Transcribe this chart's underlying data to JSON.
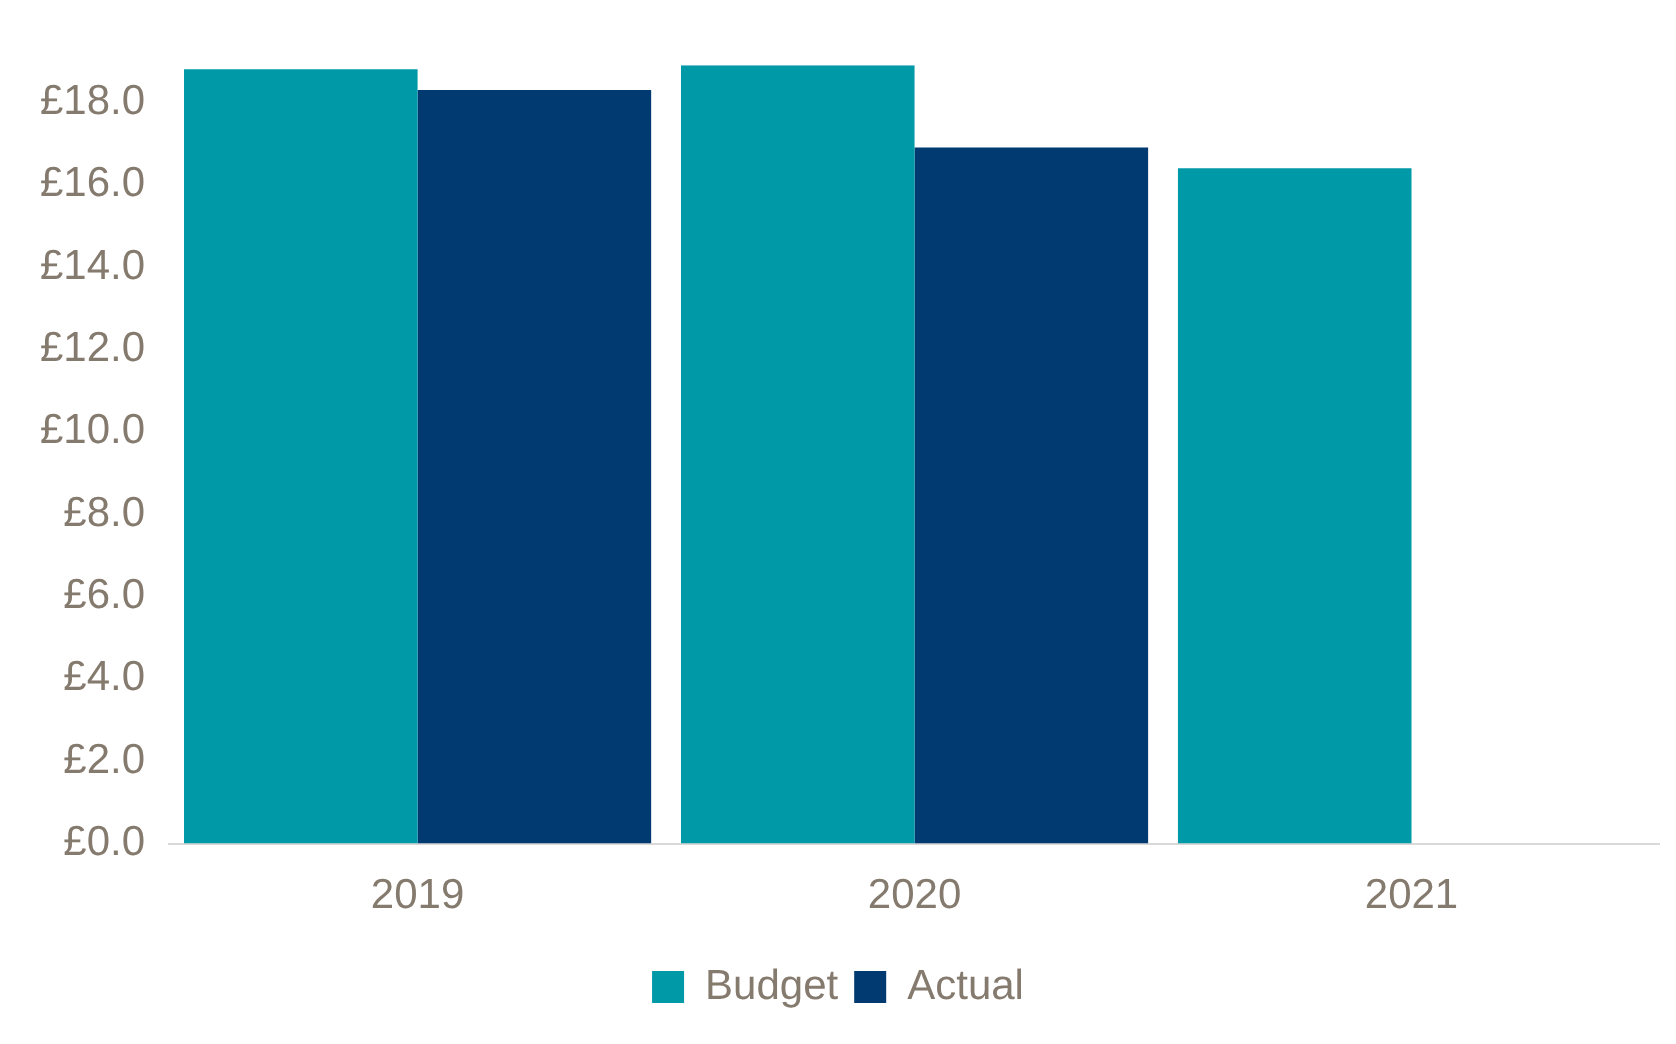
{
  "chart_data": {
    "type": "bar",
    "categories": [
      "2019",
      "2020",
      "2021"
    ],
    "series": [
      {
        "name": "Budget",
        "color": "#0099a8",
        "values": [
          18.8,
          18.9,
          16.4
        ]
      },
      {
        "name": "Actual",
        "color": "#003a70",
        "values": [
          18.3,
          16.9,
          null
        ]
      }
    ],
    "yticks": [
      {
        "value": 0,
        "label": "£0.0"
      },
      {
        "value": 2,
        "label": "£2.0"
      },
      {
        "value": 4,
        "label": "£4.0"
      },
      {
        "value": 6,
        "label": "£6.0"
      },
      {
        "value": 8,
        "label": "£8.0"
      },
      {
        "value": 10,
        "label": "£10.0"
      },
      {
        "value": 12,
        "label": "£12.0"
      },
      {
        "value": 14,
        "label": "£14.0"
      },
      {
        "value": 16,
        "label": "£16.0"
      },
      {
        "value": 18,
        "label": "£18.0"
      }
    ],
    "ylim": [
      0,
      18.9
    ],
    "grid": false,
    "legend": "bottom"
  }
}
